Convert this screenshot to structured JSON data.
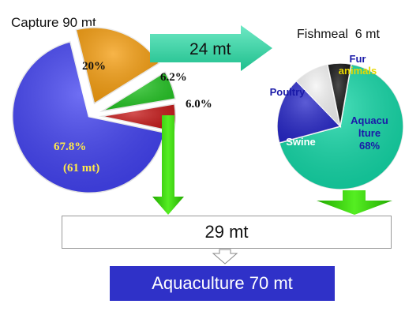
{
  "capture": {
    "title": "Capture 90 mt",
    "slices": [
      {
        "label": "67.8%",
        "value": 67.8,
        "color": "#3f3ff0"
      },
      {
        "label": "20%",
        "value": 20.0,
        "color": "#f59c0c"
      },
      {
        "label": "6.2%",
        "value": 6.2,
        "color": "#1fc21f"
      },
      {
        "label": "6.0%",
        "value": 6.0,
        "color": "#c41414"
      }
    ],
    "sublabel": "(61 mt)"
  },
  "flow_arrow_label": "24 mt",
  "fishmeal": {
    "title": "Fishmeal  6 mt",
    "slices": [
      {
        "label": "Aquaculture 68%",
        "lines": [
          "Aquacu",
          "lture",
          "68%"
        ],
        "value": 68,
        "color": "#0fd6a5"
      },
      {
        "label": "Swine",
        "lines": [
          "Swine"
        ],
        "value": 17,
        "color": "#2626c8"
      },
      {
        "label": "Poultry",
        "lines": [
          "Poultry"
        ],
        "value": 9,
        "color": "#f4f4f4"
      },
      {
        "label": "Fur animals",
        "lines": [
          "Fur",
          "animals"
        ],
        "value": 6,
        "color": "#111111"
      }
    ]
  },
  "total_box": "29 mt",
  "result_box": "Aquaculture 70 mt",
  "colors": {
    "arrow_teal": "#2fd3a0",
    "arrow_green": "#33cc11",
    "box_blue": "#2f31c8"
  }
}
